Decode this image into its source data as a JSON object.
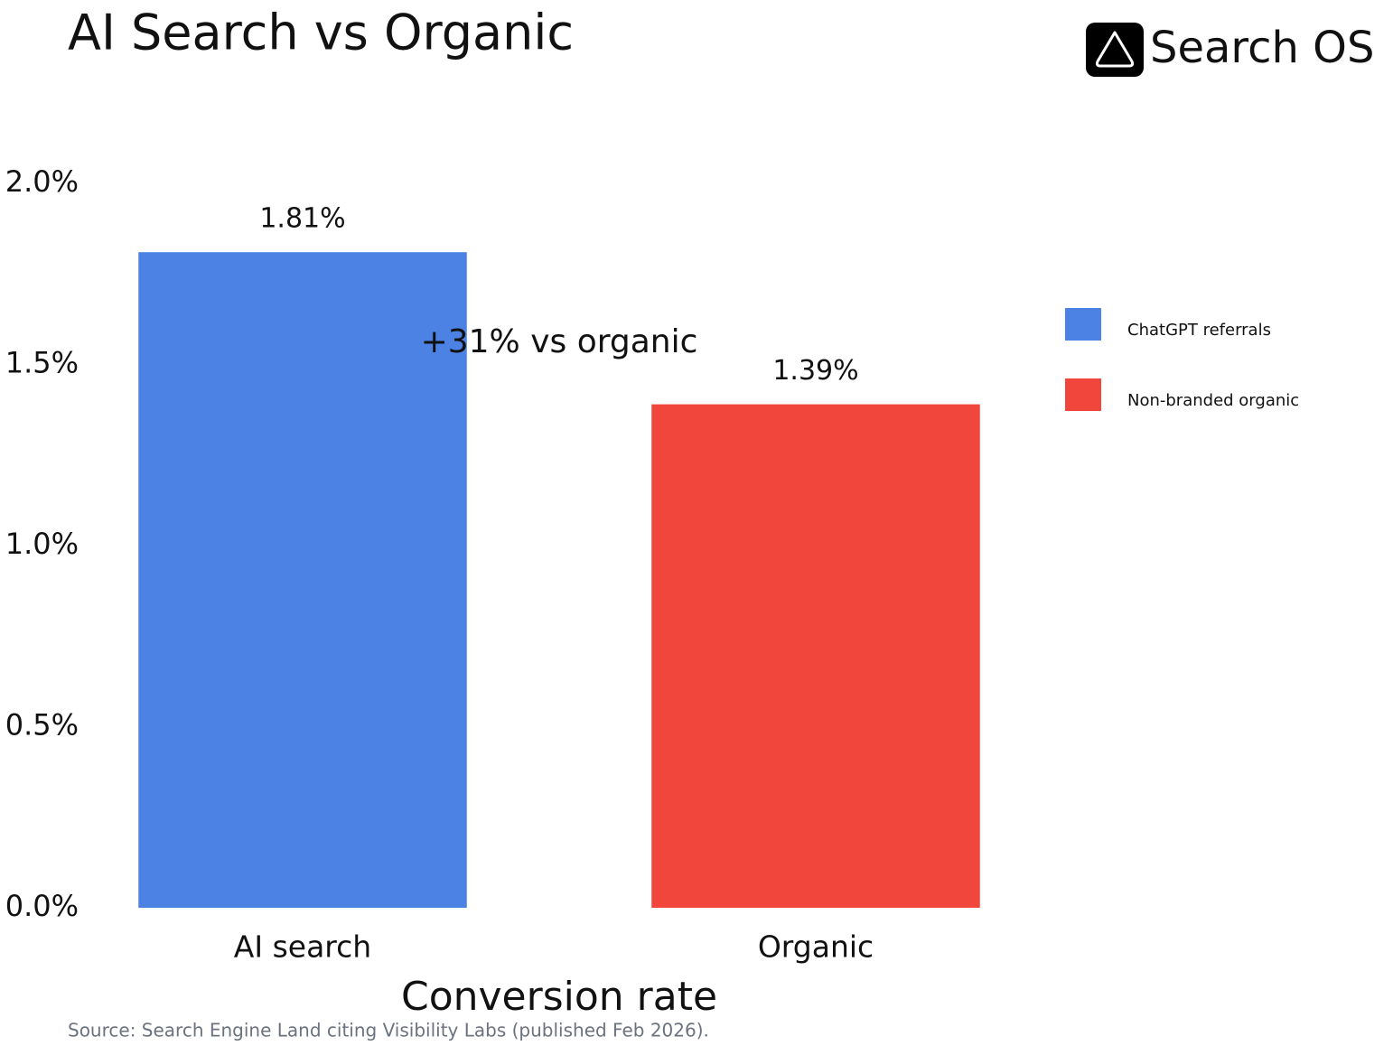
{
  "chart_data": {
    "type": "bar",
    "title": "AI Search vs Organic",
    "brand": "Search OS",
    "x_label": "Conversion rate",
    "source": "Source: Search Engine Land citing Visibility Labs (published Feb 2026).",
    "annotation": "+31% vs organic",
    "categories": [
      "AI search",
      "Organic"
    ],
    "series": [
      {
        "name": "ChatGPT referrals",
        "color": "#4c82e4",
        "values": [
          1.81,
          null
        ],
        "value_labels": [
          "1.81%",
          null
        ]
      },
      {
        "name": "Non-branded organic",
        "color": "#f0463b",
        "values": [
          null,
          1.39
        ],
        "value_labels": [
          null,
          "1.39%"
        ]
      }
    ],
    "ylim": [
      0,
      2.0
    ],
    "yticks": [
      {
        "value": 0,
        "label": "0.0%"
      },
      {
        "value": 0.5,
        "label": "0.5%"
      },
      {
        "value": 1.0,
        "label": "1.0%"
      },
      {
        "value": 1.5,
        "label": "1.5%"
      },
      {
        "value": 2.0,
        "label": "2.0%"
      }
    ],
    "grid": false,
    "legend": "right"
  }
}
